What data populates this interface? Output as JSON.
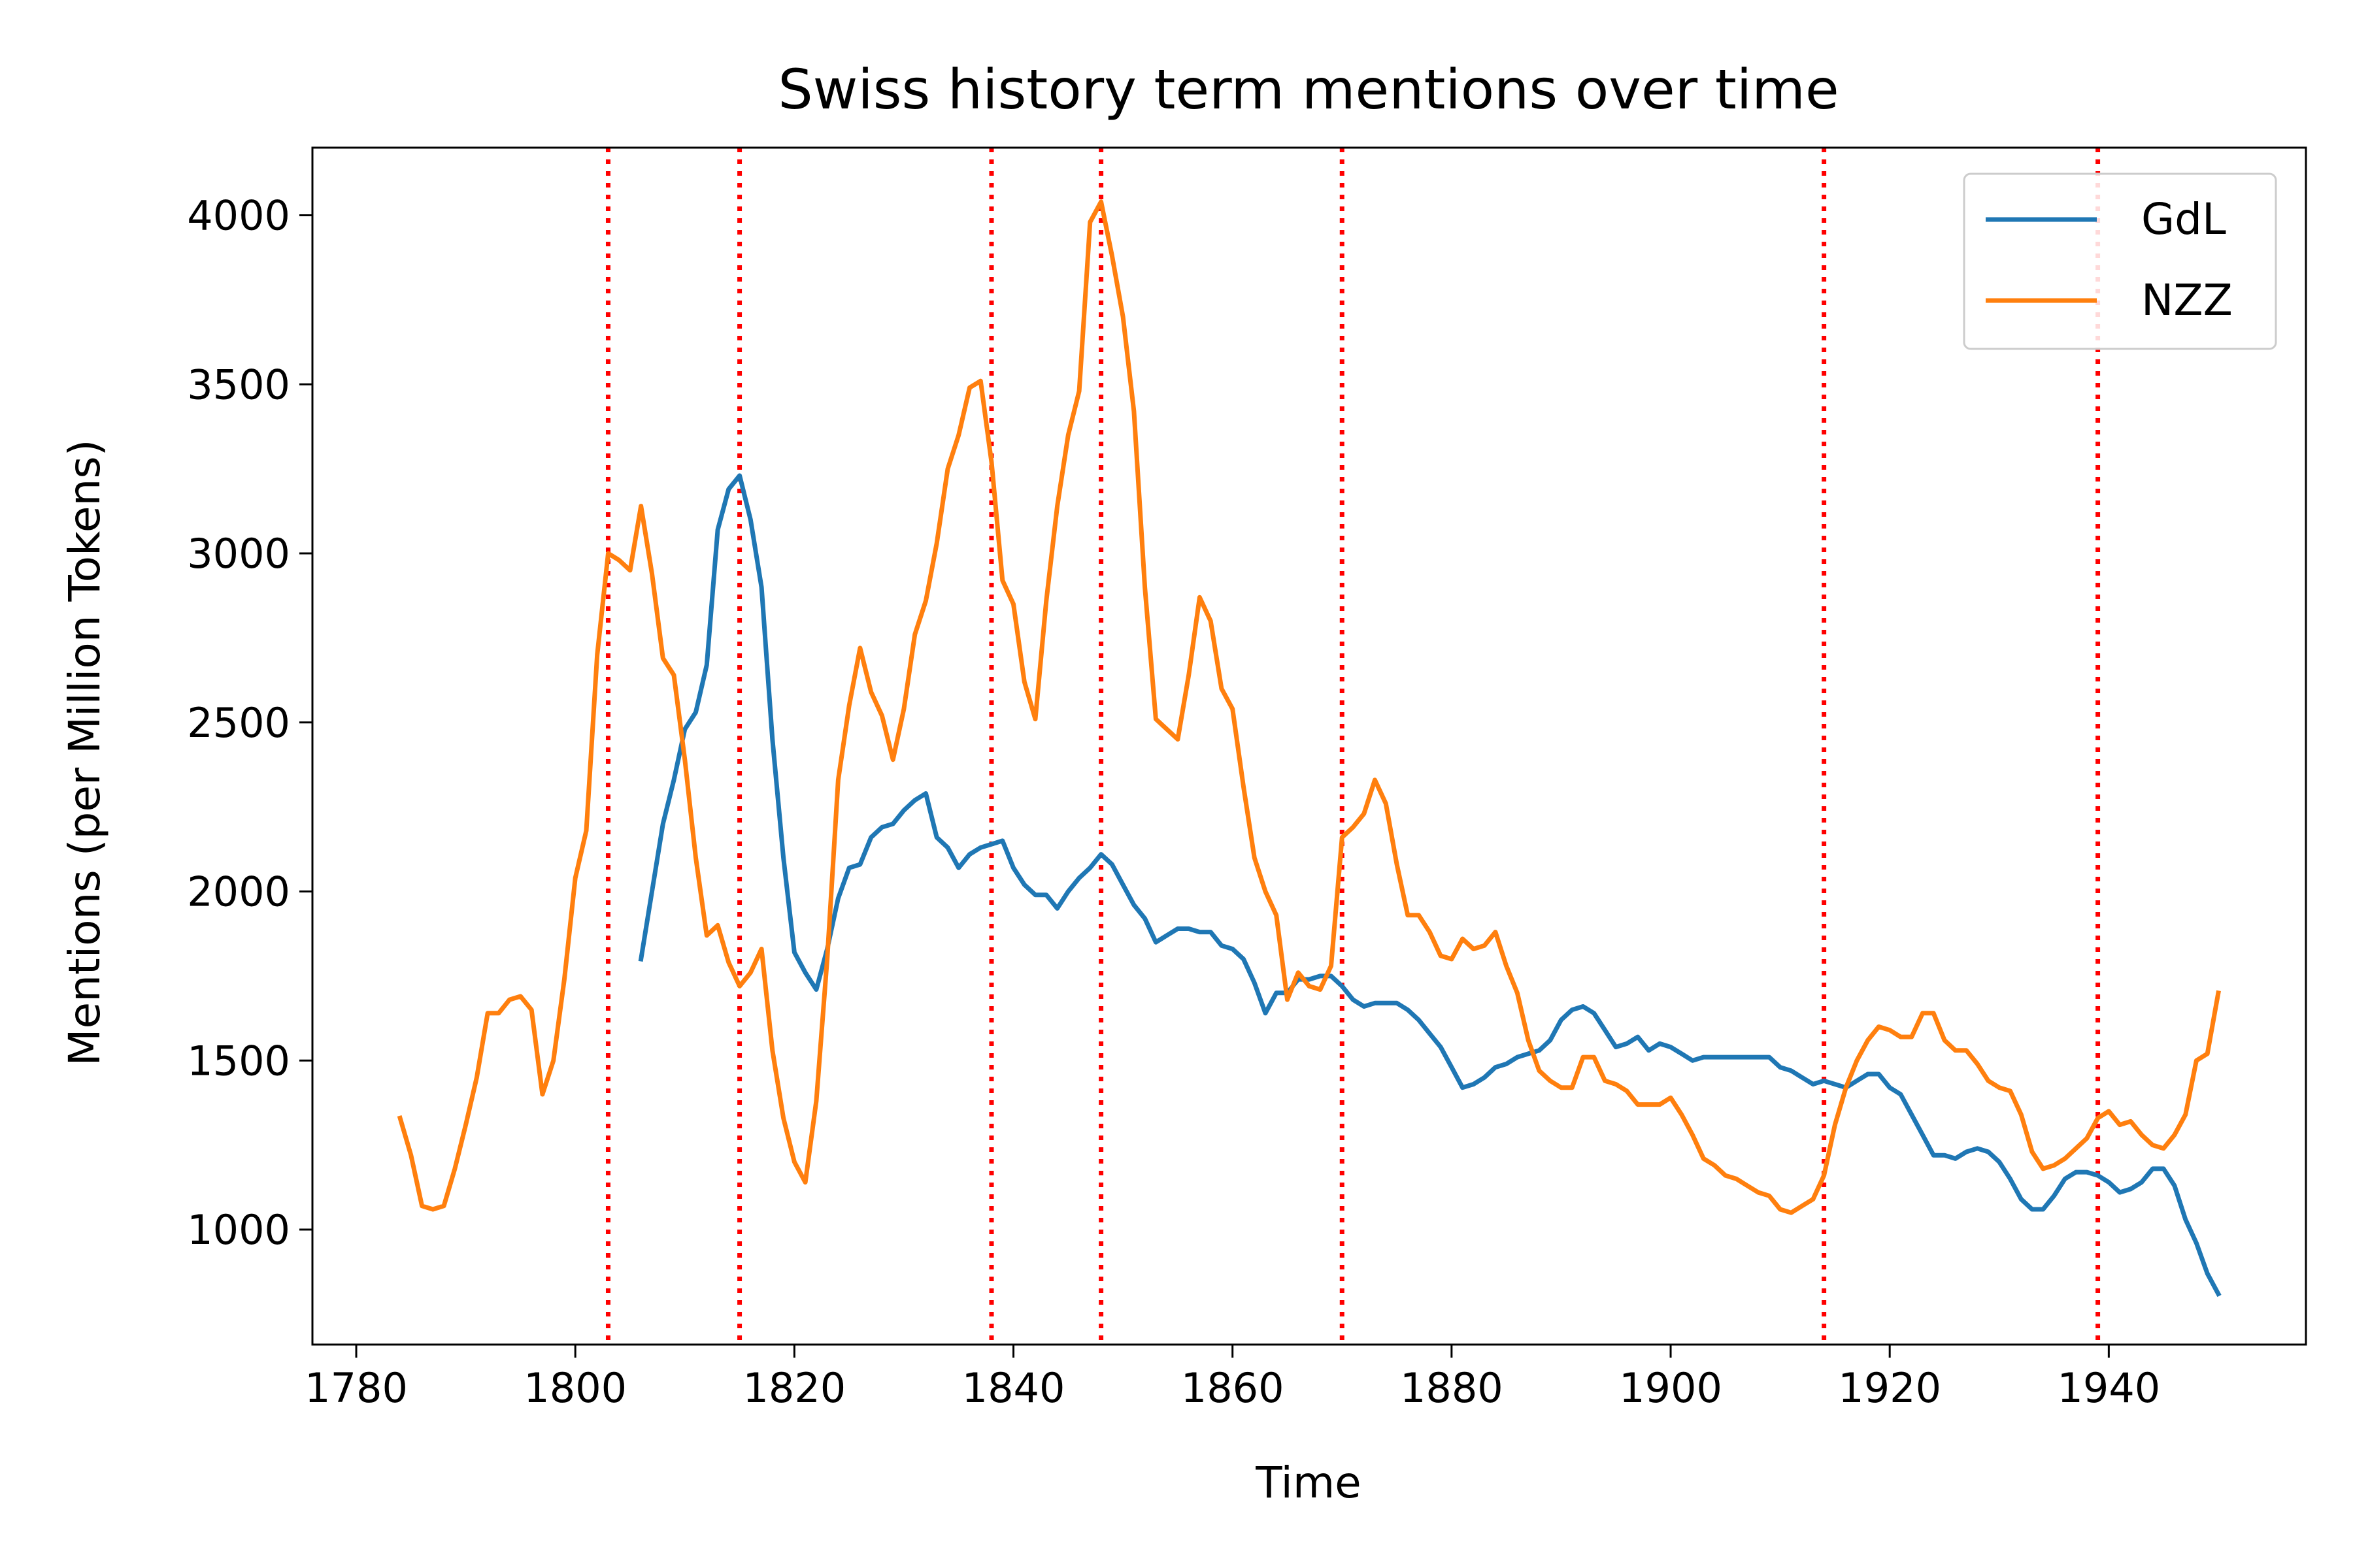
{
  "chart_data": {
    "type": "line",
    "title": "Swiss history term mentions over time",
    "xlabel": "Time",
    "ylabel": "Mentions (per Million Tokens)",
    "xlim": [
      1776,
      1958
    ],
    "ylim": [
      660,
      4200
    ],
    "x_ticks": [
      1780,
      1800,
      1820,
      1840,
      1860,
      1880,
      1900,
      1920,
      1940
    ],
    "y_ticks": [
      1000,
      1500,
      2000,
      2500,
      3000,
      3500,
      4000
    ],
    "grid": false,
    "legend_position": "upper-right",
    "reference_lines": {
      "style": "dotted",
      "color": "#ff0000",
      "x": [
        1803,
        1815,
        1838,
        1848,
        1870,
        1914,
        1939
      ]
    },
    "series": [
      {
        "name": "GdL",
        "color": "#1f77b4",
        "points": [
          [
            1806,
            1800
          ],
          [
            1807,
            2000
          ],
          [
            1808,
            2200
          ],
          [
            1809,
            2330
          ],
          [
            1810,
            2480
          ],
          [
            1811,
            2530
          ],
          [
            1812,
            2670
          ],
          [
            1813,
            3070
          ],
          [
            1814,
            3190
          ],
          [
            1815,
            3230
          ],
          [
            1816,
            3100
          ],
          [
            1817,
            2900
          ],
          [
            1818,
            2450
          ],
          [
            1819,
            2100
          ],
          [
            1820,
            1820
          ],
          [
            1821,
            1760
          ],
          [
            1822,
            1710
          ],
          [
            1823,
            1830
          ],
          [
            1824,
            1980
          ],
          [
            1825,
            2070
          ],
          [
            1826,
            2080
          ],
          [
            1827,
            2160
          ],
          [
            1828,
            2190
          ],
          [
            1829,
            2200
          ],
          [
            1830,
            2240
          ],
          [
            1831,
            2270
          ],
          [
            1832,
            2290
          ],
          [
            1833,
            2160
          ],
          [
            1834,
            2130
          ],
          [
            1835,
            2070
          ],
          [
            1836,
            2110
          ],
          [
            1837,
            2130
          ],
          [
            1838,
            2140
          ],
          [
            1839,
            2150
          ],
          [
            1840,
            2070
          ],
          [
            1841,
            2020
          ],
          [
            1842,
            1990
          ],
          [
            1843,
            1990
          ],
          [
            1844,
            1950
          ],
          [
            1845,
            2000
          ],
          [
            1846,
            2040
          ],
          [
            1847,
            2070
          ],
          [
            1848,
            2110
          ],
          [
            1849,
            2080
          ],
          [
            1850,
            2020
          ],
          [
            1851,
            1960
          ],
          [
            1852,
            1920
          ],
          [
            1853,
            1850
          ],
          [
            1854,
            1870
          ],
          [
            1855,
            1890
          ],
          [
            1856,
            1890
          ],
          [
            1857,
            1880
          ],
          [
            1858,
            1880
          ],
          [
            1859,
            1840
          ],
          [
            1860,
            1830
          ],
          [
            1861,
            1800
          ],
          [
            1862,
            1730
          ],
          [
            1863,
            1640
          ],
          [
            1864,
            1700
          ],
          [
            1865,
            1700
          ],
          [
            1866,
            1740
          ],
          [
            1867,
            1740
          ],
          [
            1868,
            1750
          ],
          [
            1869,
            1750
          ],
          [
            1870,
            1720
          ],
          [
            1871,
            1680
          ],
          [
            1872,
            1660
          ],
          [
            1873,
            1670
          ],
          [
            1874,
            1670
          ],
          [
            1875,
            1670
          ],
          [
            1876,
            1650
          ],
          [
            1877,
            1620
          ],
          [
            1878,
            1580
          ],
          [
            1879,
            1540
          ],
          [
            1880,
            1480
          ],
          [
            1881,
            1420
          ],
          [
            1882,
            1430
          ],
          [
            1883,
            1450
          ],
          [
            1884,
            1480
          ],
          [
            1885,
            1490
          ],
          [
            1886,
            1510
          ],
          [
            1887,
            1520
          ],
          [
            1888,
            1530
          ],
          [
            1889,
            1560
          ],
          [
            1890,
            1620
          ],
          [
            1891,
            1650
          ],
          [
            1892,
            1660
          ],
          [
            1893,
            1640
          ],
          [
            1894,
            1590
          ],
          [
            1895,
            1540
          ],
          [
            1896,
            1550
          ],
          [
            1897,
            1570
          ],
          [
            1898,
            1530
          ],
          [
            1899,
            1550
          ],
          [
            1900,
            1540
          ],
          [
            1901,
            1520
          ],
          [
            1902,
            1500
          ],
          [
            1903,
            1510
          ],
          [
            1904,
            1510
          ],
          [
            1905,
            1510
          ],
          [
            1906,
            1510
          ],
          [
            1907,
            1510
          ],
          [
            1908,
            1510
          ],
          [
            1909,
            1510
          ],
          [
            1910,
            1480
          ],
          [
            1911,
            1470
          ],
          [
            1912,
            1450
          ],
          [
            1913,
            1430
          ],
          [
            1914,
            1440
          ],
          [
            1915,
            1430
          ],
          [
            1916,
            1420
          ],
          [
            1917,
            1440
          ],
          [
            1918,
            1460
          ],
          [
            1919,
            1460
          ],
          [
            1920,
            1420
          ],
          [
            1921,
            1400
          ],
          [
            1922,
            1340
          ],
          [
            1923,
            1280
          ],
          [
            1924,
            1220
          ],
          [
            1925,
            1220
          ],
          [
            1926,
            1210
          ],
          [
            1927,
            1230
          ],
          [
            1928,
            1240
          ],
          [
            1929,
            1230
          ],
          [
            1930,
            1200
          ],
          [
            1931,
            1150
          ],
          [
            1932,
            1090
          ],
          [
            1933,
            1060
          ],
          [
            1934,
            1060
          ],
          [
            1935,
            1100
          ],
          [
            1936,
            1150
          ],
          [
            1937,
            1170
          ],
          [
            1938,
            1170
          ],
          [
            1939,
            1160
          ],
          [
            1940,
            1140
          ],
          [
            1941,
            1110
          ],
          [
            1942,
            1120
          ],
          [
            1943,
            1140
          ],
          [
            1944,
            1180
          ],
          [
            1945,
            1180
          ],
          [
            1946,
            1130
          ],
          [
            1947,
            1030
          ],
          [
            1948,
            960
          ],
          [
            1949,
            870
          ],
          [
            1950,
            810
          ]
        ]
      },
      {
        "name": "NZZ",
        "color": "#ff7f0e",
        "points": [
          [
            1784,
            1330
          ],
          [
            1785,
            1220
          ],
          [
            1786,
            1070
          ],
          [
            1787,
            1060
          ],
          [
            1788,
            1070
          ],
          [
            1789,
            1180
          ],
          [
            1790,
            1310
          ],
          [
            1791,
            1450
          ],
          [
            1792,
            1640
          ],
          [
            1793,
            1640
          ],
          [
            1794,
            1680
          ],
          [
            1795,
            1690
          ],
          [
            1796,
            1650
          ],
          [
            1797,
            1400
          ],
          [
            1798,
            1500
          ],
          [
            1799,
            1740
          ],
          [
            1800,
            2040
          ],
          [
            1801,
            2180
          ],
          [
            1802,
            2700
          ],
          [
            1803,
            3000
          ],
          [
            1804,
            2980
          ],
          [
            1805,
            2950
          ],
          [
            1806,
            3140
          ],
          [
            1807,
            2940
          ],
          [
            1808,
            2690
          ],
          [
            1809,
            2640
          ],
          [
            1810,
            2390
          ],
          [
            1811,
            2100
          ],
          [
            1812,
            1870
          ],
          [
            1813,
            1900
          ],
          [
            1814,
            1790
          ],
          [
            1815,
            1720
          ],
          [
            1816,
            1760
          ],
          [
            1817,
            1830
          ],
          [
            1818,
            1530
          ],
          [
            1819,
            1330
          ],
          [
            1820,
            1200
          ],
          [
            1821,
            1140
          ],
          [
            1822,
            1380
          ],
          [
            1823,
            1800
          ],
          [
            1824,
            2330
          ],
          [
            1825,
            2550
          ],
          [
            1826,
            2720
          ],
          [
            1827,
            2590
          ],
          [
            1828,
            2520
          ],
          [
            1829,
            2390
          ],
          [
            1830,
            2540
          ],
          [
            1831,
            2760
          ],
          [
            1832,
            2860
          ],
          [
            1833,
            3030
          ],
          [
            1834,
            3250
          ],
          [
            1835,
            3350
          ],
          [
            1836,
            3490
          ],
          [
            1837,
            3510
          ],
          [
            1838,
            3270
          ],
          [
            1839,
            2920
          ],
          [
            1840,
            2850
          ],
          [
            1841,
            2620
          ],
          [
            1842,
            2510
          ],
          [
            1843,
            2860
          ],
          [
            1844,
            3140
          ],
          [
            1845,
            3350
          ],
          [
            1846,
            3480
          ],
          [
            1847,
            3980
          ],
          [
            1848,
            4040
          ],
          [
            1849,
            3880
          ],
          [
            1850,
            3700
          ],
          [
            1851,
            3420
          ],
          [
            1852,
            2900
          ],
          [
            1853,
            2510
          ],
          [
            1854,
            2480
          ],
          [
            1855,
            2450
          ],
          [
            1856,
            2640
          ],
          [
            1857,
            2870
          ],
          [
            1858,
            2800
          ],
          [
            1859,
            2600
          ],
          [
            1860,
            2540
          ],
          [
            1861,
            2310
          ],
          [
            1862,
            2100
          ],
          [
            1863,
            2000
          ],
          [
            1864,
            1930
          ],
          [
            1865,
            1680
          ],
          [
            1866,
            1760
          ],
          [
            1867,
            1720
          ],
          [
            1868,
            1710
          ],
          [
            1869,
            1780
          ],
          [
            1870,
            2160
          ],
          [
            1871,
            2190
          ],
          [
            1872,
            2230
          ],
          [
            1873,
            2330
          ],
          [
            1874,
            2260
          ],
          [
            1875,
            2080
          ],
          [
            1876,
            1930
          ],
          [
            1877,
            1930
          ],
          [
            1878,
            1880
          ],
          [
            1879,
            1810
          ],
          [
            1880,
            1800
          ],
          [
            1881,
            1860
          ],
          [
            1882,
            1830
          ],
          [
            1883,
            1840
          ],
          [
            1884,
            1880
          ],
          [
            1885,
            1780
          ],
          [
            1886,
            1700
          ],
          [
            1887,
            1560
          ],
          [
            1888,
            1470
          ],
          [
            1889,
            1440
          ],
          [
            1890,
            1420
          ],
          [
            1891,
            1420
          ],
          [
            1892,
            1510
          ],
          [
            1893,
            1510
          ],
          [
            1894,
            1440
          ],
          [
            1895,
            1430
          ],
          [
            1896,
            1410
          ],
          [
            1897,
            1370
          ],
          [
            1898,
            1370
          ],
          [
            1899,
            1370
          ],
          [
            1900,
            1390
          ],
          [
            1901,
            1340
          ],
          [
            1902,
            1280
          ],
          [
            1903,
            1210
          ],
          [
            1904,
            1190
          ],
          [
            1905,
            1160
          ],
          [
            1906,
            1150
          ],
          [
            1907,
            1130
          ],
          [
            1908,
            1110
          ],
          [
            1909,
            1100
          ],
          [
            1910,
            1060
          ],
          [
            1911,
            1050
          ],
          [
            1912,
            1070
          ],
          [
            1913,
            1090
          ],
          [
            1914,
            1160
          ],
          [
            1915,
            1310
          ],
          [
            1916,
            1420
          ],
          [
            1917,
            1500
          ],
          [
            1918,
            1560
          ],
          [
            1919,
            1600
          ],
          [
            1920,
            1590
          ],
          [
            1921,
            1570
          ],
          [
            1922,
            1570
          ],
          [
            1923,
            1640
          ],
          [
            1924,
            1640
          ],
          [
            1925,
            1560
          ],
          [
            1926,
            1530
          ],
          [
            1927,
            1530
          ],
          [
            1928,
            1490
          ],
          [
            1929,
            1440
          ],
          [
            1930,
            1420
          ],
          [
            1931,
            1410
          ],
          [
            1932,
            1340
          ],
          [
            1933,
            1230
          ],
          [
            1934,
            1180
          ],
          [
            1935,
            1190
          ],
          [
            1936,
            1210
          ],
          [
            1937,
            1240
          ],
          [
            1938,
            1270
          ],
          [
            1939,
            1330
          ],
          [
            1940,
            1350
          ],
          [
            1941,
            1310
          ],
          [
            1942,
            1320
          ],
          [
            1943,
            1280
          ],
          [
            1944,
            1250
          ],
          [
            1945,
            1240
          ],
          [
            1946,
            1280
          ],
          [
            1947,
            1340
          ],
          [
            1948,
            1500
          ],
          [
            1949,
            1520
          ],
          [
            1950,
            1700
          ]
        ]
      }
    ]
  }
}
